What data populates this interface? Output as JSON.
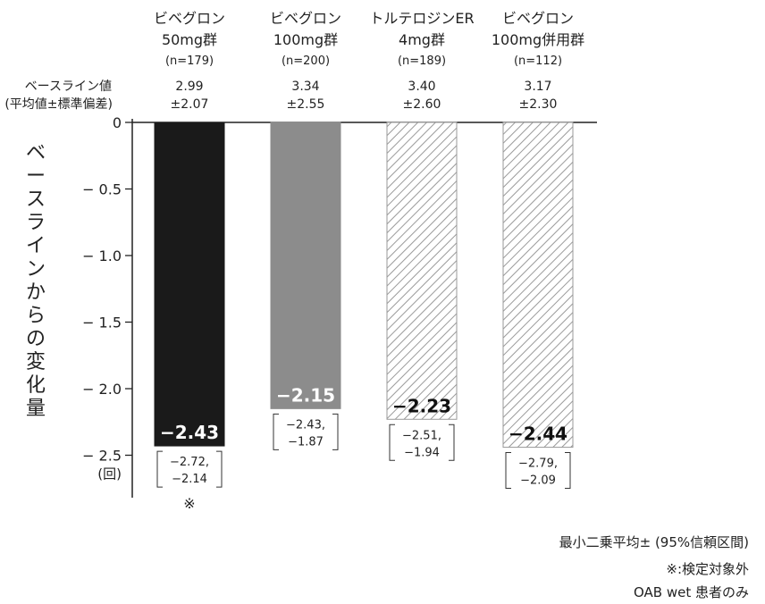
{
  "chart_data": {
    "type": "bar",
    "categories": [
      {
        "name": [
          "ビベグロン",
          "50mg群"
        ],
        "n": "(n=179)",
        "baseline": [
          "2.99",
          "±2.07"
        ]
      },
      {
        "name": [
          "ビベグロン",
          "100mg群"
        ],
        "n": "(n=200)",
        "baseline": [
          "3.34",
          "±2.55"
        ]
      },
      {
        "name": [
          "トルテロジンER",
          "4mg群"
        ],
        "n": "(n=189)",
        "baseline": [
          "3.40",
          "±2.60"
        ]
      },
      {
        "name": [
          "ビベグロン",
          "100mg併用群"
        ],
        "n": "(n=112)",
        "baseline": [
          "3.17",
          "±2.30"
        ]
      }
    ],
    "values": [
      -2.43,
      -2.15,
      -2.23,
      -2.44
    ],
    "value_labels": [
      "−2.43",
      "−2.15",
      "−2.23",
      "−2.44"
    ],
    "ci_labels": [
      [
        "−2.72,",
        "−2.14"
      ],
      [
        "−2.43,",
        "−1.87"
      ],
      [
        "−2.51,",
        "−1.94"
      ],
      [
        "−2.79,",
        "−2.09"
      ]
    ],
    "fills": [
      "solid",
      "solid",
      "hatch",
      "hatch"
    ],
    "colors": [
      "#1a1a1a",
      "#8c8c8c",
      "#9a9a9a",
      "#9a9a9a"
    ],
    "marks": [
      "※",
      "",
      "",
      ""
    ],
    "baseline_row_label": [
      "ベースライン値",
      "(平均値±標準偏差)"
    ],
    "ylabel": "ベースラインからの変化量",
    "yunit": "(回)",
    "ylim": [
      -2.5,
      0
    ],
    "yticks": [
      0,
      -0.5,
      -1.0,
      -1.5,
      -2.0,
      -2.5
    ],
    "ytick_labels": [
      "0",
      "− 0.5",
      "− 1.0",
      "− 1.5",
      "− 2.0",
      "− 2.5"
    ],
    "grid": false
  },
  "notes": {
    "line1": "最小二乗平均± (95%信頼区間)",
    "line2": "※:検定対象外",
    "line3": "OAB wet 患者のみ"
  }
}
